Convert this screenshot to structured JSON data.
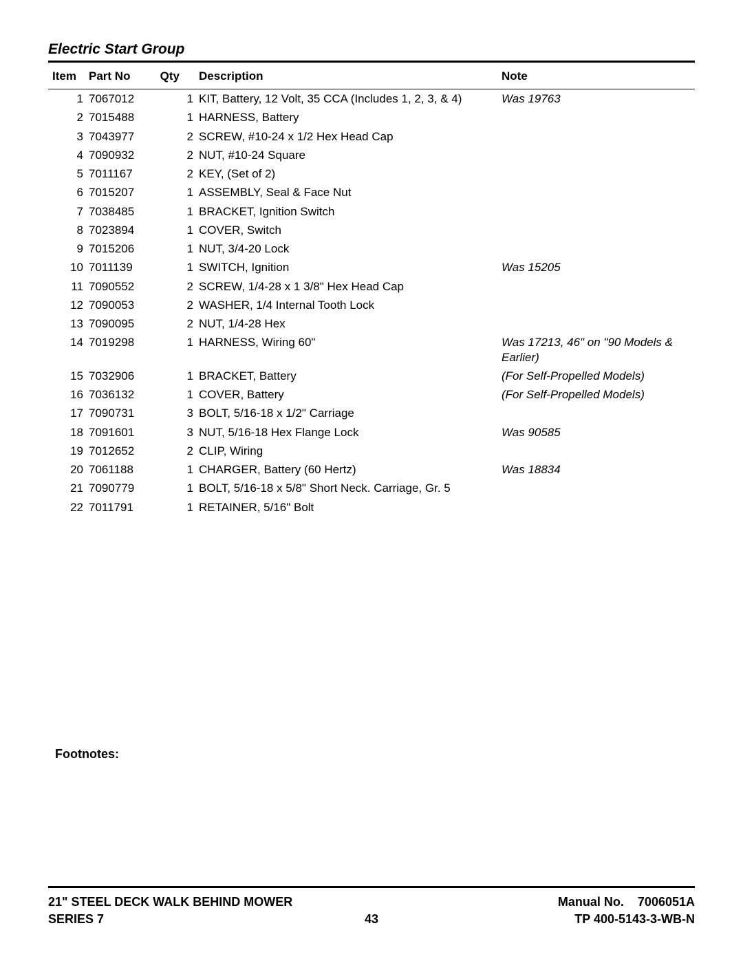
{
  "section_title": "Electric Start Group",
  "columns": {
    "item": "Item",
    "part": "Part No",
    "qty": "Qty",
    "desc": "Description",
    "note": "Note"
  },
  "rows": [
    {
      "item": "1",
      "part": "7067012",
      "qty": "1",
      "desc": "KIT, Battery, 12 Volt, 35 CCA (Includes 1, 2, 3, & 4)",
      "note": "Was 19763"
    },
    {
      "item": "2",
      "part": "7015488",
      "qty": "1",
      "desc": "HARNESS, Battery",
      "note": ""
    },
    {
      "item": "3",
      "part": "7043977",
      "qty": "2",
      "desc": "SCREW, #10-24 x 1/2 Hex Head Cap",
      "note": ""
    },
    {
      "item": "4",
      "part": "7090932",
      "qty": "2",
      "desc": "NUT, #10-24 Square",
      "note": ""
    },
    {
      "item": "5",
      "part": "7011167",
      "qty": "2",
      "desc": "KEY, (Set of 2)",
      "note": ""
    },
    {
      "item": "6",
      "part": "7015207",
      "qty": "1",
      "desc": "ASSEMBLY, Seal & Face Nut",
      "note": ""
    },
    {
      "item": "7",
      "part": "7038485",
      "qty": "1",
      "desc": "BRACKET, Ignition Switch",
      "note": ""
    },
    {
      "item": "8",
      "part": "7023894",
      "qty": "1",
      "desc": "COVER, Switch",
      "note": ""
    },
    {
      "item": "9",
      "part": "7015206",
      "qty": "1",
      "desc": "NUT, 3/4-20 Lock",
      "note": ""
    },
    {
      "item": "10",
      "part": "7011139",
      "qty": "1",
      "desc": "SWITCH, Ignition",
      "note": "Was 15205"
    },
    {
      "item": "11",
      "part": "7090552",
      "qty": "2",
      "desc": "SCREW, 1/4-28 x 1 3/8\" Hex Head Cap",
      "note": ""
    },
    {
      "item": "12",
      "part": "7090053",
      "qty": "2",
      "desc": "WASHER, 1/4 Internal Tooth Lock",
      "note": ""
    },
    {
      "item": "13",
      "part": "7090095",
      "qty": "2",
      "desc": "NUT, 1/4-28 Hex",
      "note": ""
    },
    {
      "item": "14",
      "part": "7019298",
      "qty": "1",
      "desc": "HARNESS, Wiring 60\"",
      "note": "Was 17213, 46\" on \"90 Models & Earlier)"
    },
    {
      "item": "15",
      "part": "7032906",
      "qty": "1",
      "desc": "BRACKET, Battery",
      "note": "(For Self-Propelled Models)"
    },
    {
      "item": "16",
      "part": "7036132",
      "qty": "1",
      "desc": "COVER, Battery",
      "note": "(For Self-Propelled Models)"
    },
    {
      "item": "17",
      "part": "7090731",
      "qty": "3",
      "desc": "BOLT, 5/16-18 x 1/2\" Carriage",
      "note": ""
    },
    {
      "item": "18",
      "part": "7091601",
      "qty": "3",
      "desc": "NUT, 5/16-18 Hex Flange Lock",
      "note": "Was 90585"
    },
    {
      "item": "19",
      "part": "7012652",
      "qty": "2",
      "desc": "CLIP, Wiring",
      "note": ""
    },
    {
      "item": "20",
      "part": "7061188",
      "qty": "1",
      "desc": "CHARGER, Battery (60 Hertz)",
      "note": "Was 18834"
    },
    {
      "item": "21",
      "part": "7090779",
      "qty": "1",
      "desc": "BOLT, 5/16-18 x 5/8\" Short Neck. Carriage, Gr. 5",
      "note": ""
    },
    {
      "item": "22",
      "part": "7011791",
      "qty": "1",
      "desc": "RETAINER, 5/16\" Bolt",
      "note": ""
    }
  ],
  "footnotes_label": "Footnotes:",
  "footer": {
    "product_line1": "21\" STEEL DECK WALK BEHIND MOWER",
    "product_line2": "SERIES 7",
    "page_number": "43",
    "manual_label": "Manual No.",
    "manual_no": "7006051A",
    "tp_no": "TP 400-5143-3-WB-N"
  }
}
